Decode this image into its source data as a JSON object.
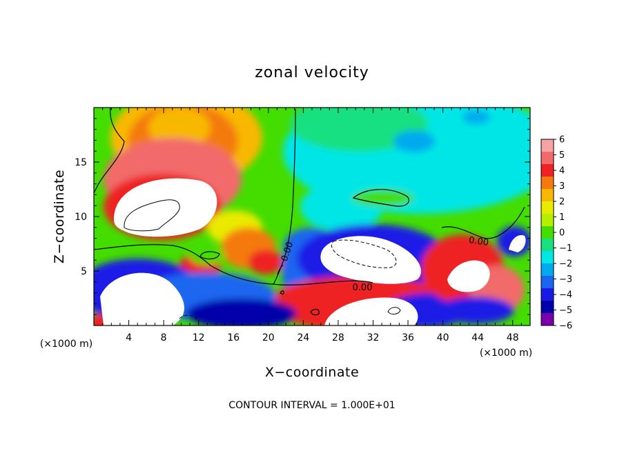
{
  "chart_data": {
    "type": "heatmap",
    "title": "zonal velocity",
    "xlabel": "X−coordinate",
    "ylabel": "Z−coordinate",
    "x_unit": "(×1000 m)",
    "z_unit": "(×1000 m)",
    "xlim": [
      0,
      50
    ],
    "ylim": [
      0,
      20
    ],
    "xticks": [
      "4",
      "8",
      "12",
      "16",
      "20",
      "24",
      "28",
      "32",
      "36",
      "40",
      "44",
      "48"
    ],
    "yticks": [
      "5",
      "10",
      "15"
    ],
    "colorbar": {
      "ticks": [
        "6",
        "5",
        "4",
        "3",
        "2",
        "1",
        "0",
        "−1",
        "−2",
        "−3",
        "−4",
        "−5",
        "−6"
      ],
      "range": [
        -6,
        6
      ],
      "colors": [
        "#f5a3a3",
        "#f26a6a",
        "#ee2222",
        "#f47a10",
        "#f8b800",
        "#eaea00",
        "#b6ee00",
        "#44dd00",
        "#18e080",
        "#00e6e6",
        "#00aaee",
        "#1a66f0",
        "#1a1ae6",
        "#0000aa",
        "#7700aa"
      ]
    },
    "contour_labels": [
      "0.00",
      "0.00",
      "0.00"
    ],
    "footer": "CONTOUR INTERVAL = 1.000E+01"
  }
}
